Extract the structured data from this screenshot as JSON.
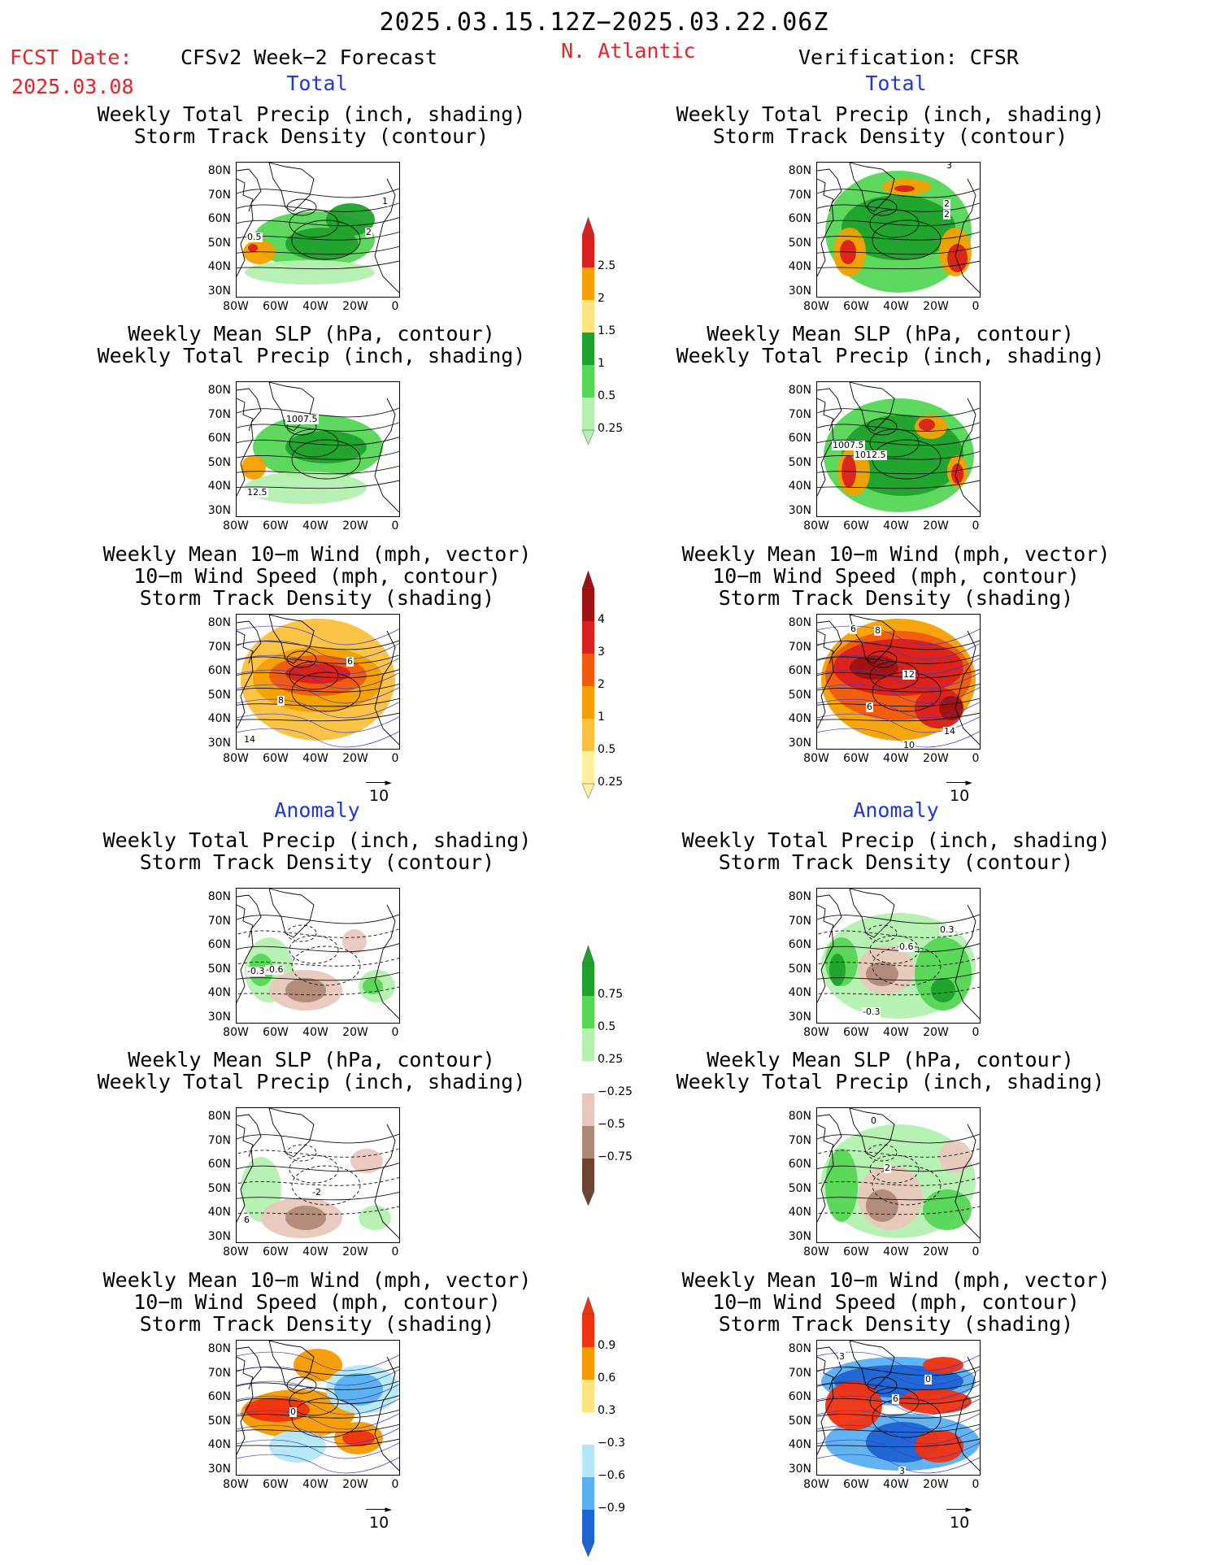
{
  "header": {
    "date_range": "2025.03.15.12Z−2025.03.22.06Z",
    "fcst_label": "FCST Date:",
    "fcst_date": "2025.03.08",
    "left_title": "CFSv2 Week−2 Forecast",
    "region": "N. Atlantic",
    "right_title": "Verification: CFSR"
  },
  "sections": {
    "total": "Total",
    "anomaly": "Anomaly"
  },
  "panel_titles": {
    "precip_track": [
      "Weekly Total Precip (inch, shading)",
      "Storm Track Density (contour)"
    ],
    "slp_precip": [
      "Weekly Mean SLP (hPa, contour)",
      "Weekly Total Precip (inch, shading)"
    ],
    "wind_track": [
      "Weekly Mean 10−m Wind (mph, vector)",
      "10−m Wind Speed (mph, contour)",
      "Storm Track Density (shading)"
    ]
  },
  "axes": {
    "lat_ticks": [
      "80N",
      "70N",
      "60N",
      "50N",
      "40N",
      "30N"
    ],
    "lon_ticks": [
      "80W",
      "60W",
      "40W",
      "20W",
      "0"
    ]
  },
  "vector_ref": "10",
  "colorbars": {
    "precip_total": {
      "labels": [
        "2.5",
        "2",
        "1.5",
        "1",
        "0.5",
        "0.25"
      ],
      "colors": [
        "#d9201c",
        "#f5a000",
        "#fee47c",
        "#1fa22b",
        "#55d655",
        "#b4f0b0"
      ]
    },
    "track_total": {
      "labels": [
        "4",
        "3",
        "2",
        "1",
        "0.5",
        "0.25"
      ],
      "colors": [
        "#a01210",
        "#d9201c",
        "#f05a0f",
        "#f5a000",
        "#fbc13c",
        "#fff0a0"
      ]
    },
    "precip_anom": {
      "labels": [
        "0.75",
        "0.5",
        "0.25",
        "−0.25",
        "−0.5",
        "−0.75"
      ],
      "colors": [
        "#1fa22b",
        "#55d655",
        "#b4f0b0",
        "#ffffff",
        "#e8c8bc",
        "#b08878",
        "#6e4430"
      ]
    },
    "track_anom": {
      "labels": [
        "0.9",
        "0.6",
        "0.3",
        "−0.3",
        "−0.6",
        "−0.9"
      ],
      "colors": [
        "#f0320f",
        "#f59a00",
        "#fee47c",
        "#ffffff",
        "#b4e8f8",
        "#5aaff0",
        "#1e64d2"
      ]
    }
  },
  "contour_labels": {
    "f_pt": [
      "1",
      "2",
      "0.5"
    ],
    "f_sp": [
      "1007.5",
      "12.5"
    ],
    "f_wt": [
      "6",
      "8",
      "14"
    ],
    "v_pt": [
      "3",
      "2",
      "2"
    ],
    "v_sp": [
      "1007.5",
      "1012.5"
    ],
    "v_wt": [
      "6",
      "8",
      "12",
      "6",
      "14",
      "10"
    ],
    "fa_pt": [
      "-0.3",
      "-0.6"
    ],
    "fa_sp": [
      "-2",
      "6"
    ],
    "fa_wt": [
      "0"
    ],
    "va_pt": [
      "0.6",
      "0.3",
      "-0.3"
    ],
    "va_sp": [
      "0",
      "2"
    ],
    "va_wt": [
      "3",
      "0",
      "6",
      "3"
    ]
  }
}
